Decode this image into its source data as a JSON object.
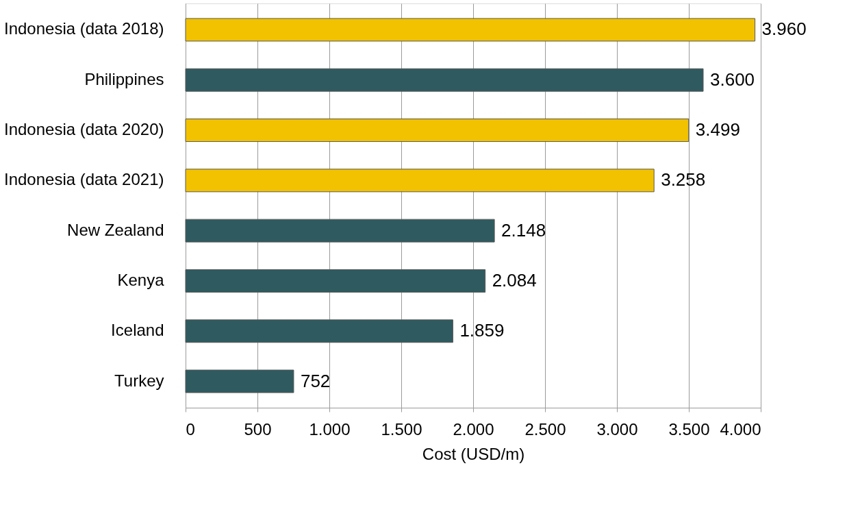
{
  "chart_data": {
    "type": "bar",
    "orientation": "horizontal",
    "xlabel": "Cost (USD/m)",
    "categories": [
      "Indonesia (data 2018)",
      "Philippines",
      "Indonesia (data 2020)",
      "Indonesia (data 2021)",
      "New Zealand",
      "Kenya",
      "Iceland",
      "Turkey"
    ],
    "values": [
      3960,
      3600,
      3499,
      3258,
      2148,
      2084,
      1859,
      752
    ],
    "colors": [
      "#f2c200",
      "#2f5b60",
      "#f2c200",
      "#f2c200",
      "#2f5b60",
      "#2f5b60",
      "#2f5b60",
      "#2f5b60"
    ],
    "value_labels": [
      "3.960",
      "3.600",
      "3.499",
      "3.258",
      "2.148",
      "2.084",
      "1.859",
      "752"
    ],
    "xlim": [
      0,
      4000
    ],
    "xticks": [
      0,
      500,
      {
        "value": 1000,
        "label": "1.000"
      },
      {
        "value": 1500,
        "label": "1.500"
      },
      {
        "value": 2000,
        "label": "2.000"
      },
      {
        "value": 2500,
        "label": "2.500"
      },
      {
        "value": 3000,
        "label": "3.000"
      },
      {
        "value": 3500,
        "label": "3.500"
      },
      {
        "value": 4000,
        "label": "4.000"
      }
    ],
    "grid": "x"
  }
}
